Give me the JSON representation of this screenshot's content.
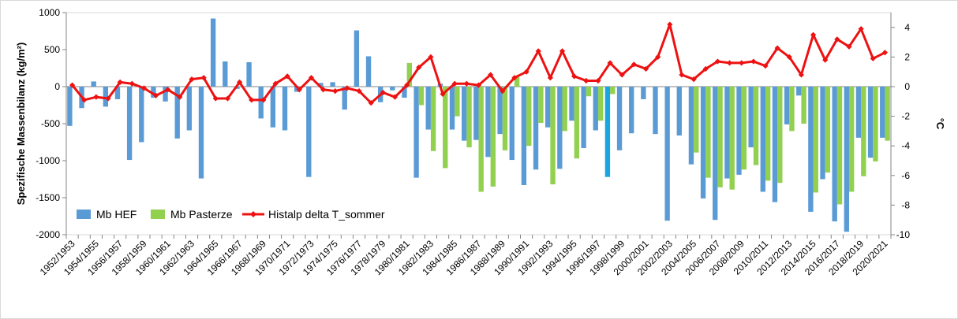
{
  "chart_data": {
    "type": "bar",
    "title": "",
    "ylabel": "Spezifische Massenbilanz (kg/m²)",
    "y2label": "°C",
    "ylim": [
      -2000,
      1000
    ],
    "y2lim": [
      -10,
      5
    ],
    "yticks": [
      1000,
      500,
      0,
      -500,
      -1000,
      -1500,
      -2000
    ],
    "y2ticks": [
      4,
      2,
      0,
      -2,
      -4,
      -6,
      -8,
      -10
    ],
    "grid": false,
    "legend_position": "lower-left-inside",
    "colors": {
      "Mb HEF": "#5b9bd5",
      "Mb Pasterze": "#92d050",
      "Histalp delta T_sommer": "#ee1111",
      "Mb HEF highlight": "#1aa5e0"
    },
    "highlight_category": "1997/1998",
    "categories": [
      "1952/1953",
      "1953/1954",
      "1954/1955",
      "1955/1956",
      "1956/1957",
      "1957/1958",
      "1958/1959",
      "1959/1960",
      "1960/1961",
      "1961/1962",
      "1962/1963",
      "1963/1964",
      "1964/1965",
      "1965/1966",
      "1966/1967",
      "1967/1968",
      "1968/1969",
      "1969/1970",
      "1970/1971",
      "1971/1972",
      "1972/1973",
      "1973/1974",
      "1974/1975",
      "1975/1976",
      "1976/1977",
      "1977/1978",
      "1978/1979",
      "1979/1980",
      "1980/1981",
      "1981/1982",
      "1982/1983",
      "1983/1984",
      "1984/1985",
      "1985/1986",
      "1986/1987",
      "1987/1988",
      "1988/1989",
      "1989/1990",
      "1990/1991",
      "1991/1992",
      "1992/1993",
      "1993/1994",
      "1994/1995",
      "1995/1996",
      "1996/1997",
      "1997/1998",
      "1998/1999",
      "1999/2000",
      "2000/2001",
      "2001/2002",
      "2002/2003",
      "2003/2004",
      "2004/2005",
      "2005/2006",
      "2006/2007",
      "2007/2008",
      "2008/2009",
      "2009/2010",
      "2010/2011",
      "2011/2012",
      "2012/2013",
      "2013/2014",
      "2014/2015",
      "2015/2016",
      "2016/2017",
      "2017/2018",
      "2018/2019",
      "2019/2020",
      "2020/2021"
    ],
    "x_tick_labels": [
      "1952/1953",
      "1954/1955",
      "1956/1957",
      "1958/1959",
      "1960/1961",
      "1962/1963",
      "1964/1965",
      "1966/1967",
      "1968/1969",
      "1970/1971",
      "1972/1973",
      "1974/1975",
      "1976/1977",
      "1978/1979",
      "1980/1981",
      "1982/1983",
      "1984/1985",
      "1986/1987",
      "1988/1989",
      "1990/1991",
      "1992/1993",
      "1994/1995",
      "1996/1997",
      "1998/1999",
      "2000/2001",
      "2002/2003",
      "2004/2005",
      "2006/2007",
      "2008/2009",
      "2010/2011",
      "2012/2013",
      "2014/2015",
      "2016/2017",
      "2018/2019",
      "2020/2021"
    ],
    "series": [
      {
        "name": "Mb HEF",
        "type": "bar",
        "axis": "left",
        "values": [
          -530,
          -290,
          70,
          -270,
          -170,
          -990,
          -750,
          -150,
          -200,
          -700,
          -590,
          -1240,
          920,
          340,
          -30,
          330,
          -430,
          -550,
          -590,
          -70,
          -1220,
          50,
          60,
          -310,
          760,
          410,
          -210,
          -50,
          -150,
          -1230,
          -580,
          40,
          -580,
          -730,
          -720,
          -950,
          -640,
          -990,
          -1330,
          -1120,
          -550,
          -1110,
          -460,
          -830,
          -590,
          -1220,
          -860,
          -630,
          -170,
          -640,
          -1810,
          -660,
          -1050,
          -1510,
          -1800,
          -1240,
          -1190,
          -820,
          -1420,
          -1560,
          -510,
          -120,
          -1690,
          -1250,
          -1820,
          -1960,
          -690,
          -960,
          -690
        ]
      },
      {
        "name": "Mb Pasterze",
        "type": "bar",
        "axis": "left",
        "values": [
          null,
          null,
          null,
          null,
          null,
          null,
          null,
          null,
          null,
          null,
          null,
          null,
          null,
          null,
          null,
          null,
          null,
          null,
          null,
          null,
          null,
          null,
          null,
          null,
          null,
          null,
          null,
          null,
          320,
          -250,
          -870,
          -1100,
          -400,
          -820,
          -1420,
          -1350,
          -860,
          130,
          -800,
          -490,
          -1320,
          -600,
          -970,
          -130,
          -460,
          -100,
          null,
          null,
          null,
          null,
          null,
          null,
          -890,
          -1230,
          -1360,
          -1390,
          -1120,
          -1060,
          -1270,
          -1300,
          -600,
          -500,
          -1430,
          -1160,
          -1590,
          -1420,
          -1210,
          -1010,
          -730
        ]
      },
      {
        "name": "Histalp delta T_sommer",
        "type": "line",
        "axis": "right",
        "values": [
          0.1,
          -0.9,
          -0.7,
          -0.8,
          0.3,
          0.2,
          -0.1,
          -0.6,
          -0.2,
          -0.7,
          0.5,
          0.6,
          -0.8,
          -0.8,
          0.3,
          -0.9,
          -0.9,
          0.2,
          0.7,
          -0.2,
          0.6,
          -0.2,
          -0.3,
          -0.1,
          -0.3,
          -1.1,
          -0.4,
          -0.7,
          0.1,
          1.3,
          2.0,
          -0.5,
          0.2,
          0.2,
          0.1,
          0.8,
          -0.3,
          0.6,
          1.0,
          2.4,
          0.6,
          2.4,
          0.7,
          0.4,
          0.4,
          1.6,
          0.8,
          1.5,
          1.2,
          2.0,
          4.2,
          0.8,
          0.5,
          1.2,
          1.7,
          1.6,
          1.6,
          1.7,
          1.4,
          2.6,
          2.0,
          0.8,
          3.5,
          1.8,
          3.2,
          2.7,
          3.9,
          1.9,
          2.3
        ]
      }
    ]
  }
}
